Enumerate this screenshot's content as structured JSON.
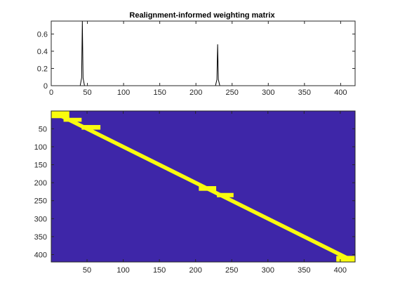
{
  "chart_data": [
    {
      "type": "line",
      "title": "Realignment-informed weighting matrix",
      "xlabel": "",
      "ylabel": "",
      "xlim": [
        0,
        420
      ],
      "ylim": [
        0,
        0.75
      ],
      "xticks": [
        0,
        50,
        100,
        150,
        200,
        250,
        300,
        350,
        400
      ],
      "yticks": [
        0,
        0.2,
        0.4,
        0.6
      ],
      "line_color": "#000000",
      "series": [
        {
          "x": [
            0,
            40,
            42,
            43,
            44,
            46,
            227,
            229,
            230,
            231,
            233,
            420
          ],
          "values": [
            0,
            0,
            0.09,
            0.75,
            0.09,
            0,
            0,
            0.07,
            0.48,
            0.07,
            0,
            0
          ]
        }
      ]
    },
    {
      "type": "heatmap",
      "title": "",
      "xlim": [
        0.5,
        420.5
      ],
      "ylim": [
        0.5,
        420.5
      ],
      "xticks": [
        50,
        100,
        150,
        200,
        250,
        300,
        350,
        400
      ],
      "yticks": [
        50,
        100,
        150,
        200,
        250,
        300,
        350,
        400
      ],
      "colors": {
        "background": "#3e26a8",
        "band": "#f9fb0e"
      },
      "band_halfwidth": 6,
      "blocks": [
        {
          "rows": [
            1,
            20
          ],
          "cols": [
            1,
            25
          ]
        },
        {
          "rows": [
            20,
            30
          ],
          "cols": [
            18,
            42
          ]
        },
        {
          "rows": [
            40,
            52
          ],
          "cols": [
            43,
            68
          ]
        },
        {
          "rows": [
            210,
            222
          ],
          "cols": [
            205,
            228
          ]
        },
        {
          "rows": [
            229,
            240
          ],
          "cols": [
            230,
            252
          ]
        },
        {
          "rows": [
            404,
            420
          ],
          "cols": [
            395,
            420
          ]
        }
      ]
    }
  ]
}
